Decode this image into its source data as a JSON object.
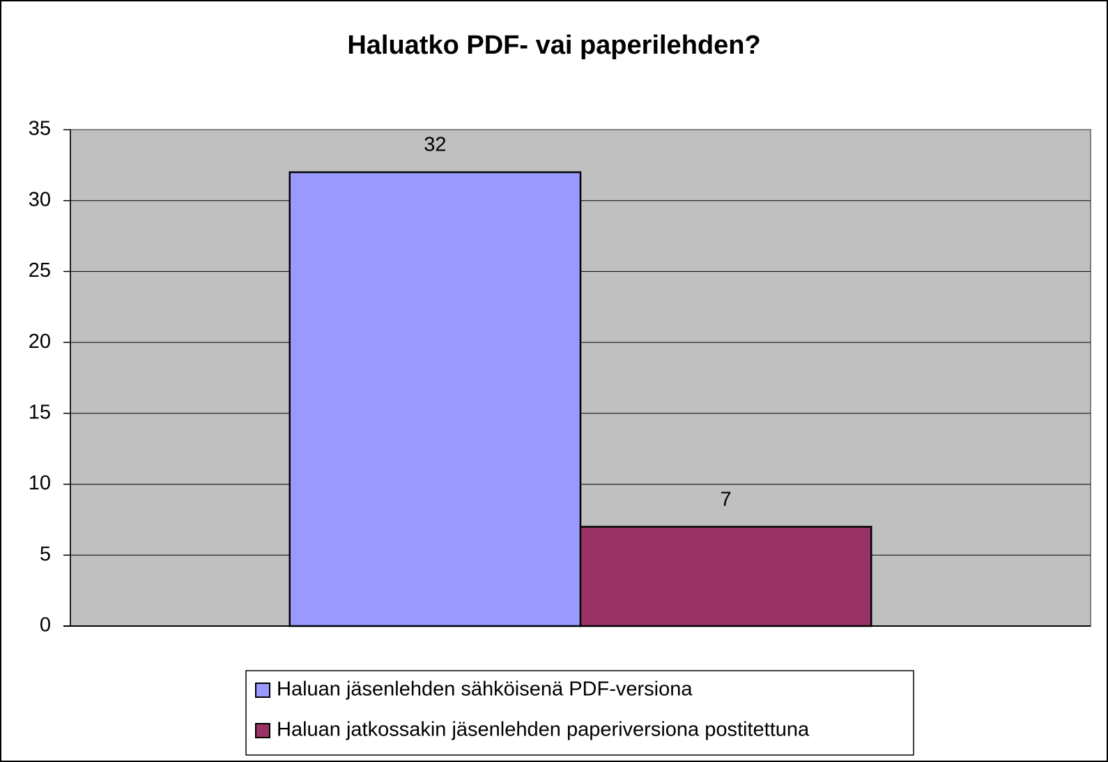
{
  "chart_data": {
    "type": "bar",
    "title": "Haluatko PDF- vai paperilehden?",
    "categories": [
      null
    ],
    "series": [
      {
        "name": "Haluan jäsenlehden sähköisenä PDF-versiona",
        "color": "#9999ff",
        "values": [
          32
        ]
      },
      {
        "name": "Haluan jatkossakin jäsenlehden paperiversiona postitettuna",
        "color": "#993366",
        "values": [
          7
        ]
      }
    ],
    "ylim": [
      0,
      35
    ],
    "yticks": [
      0,
      5,
      10,
      15,
      20,
      25,
      30,
      35
    ],
    "grid": true,
    "legend": "bottom",
    "plot_background": "#c0c0c0"
  }
}
